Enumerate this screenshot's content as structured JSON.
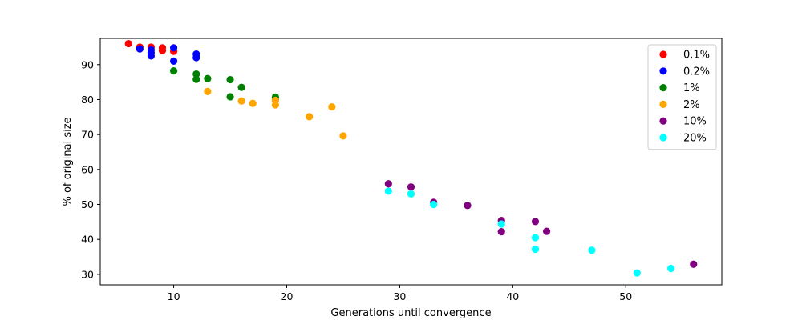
{
  "chart_data": {
    "type": "scatter",
    "title": "",
    "xlabel": "Generations until convergence",
    "ylabel": "% of original size",
    "xlim": [
      3.5,
      58.5
    ],
    "ylim": [
      27.0,
      97.5
    ],
    "xticks": [
      10,
      20,
      30,
      40,
      50
    ],
    "yticks": [
      30,
      40,
      50,
      60,
      70,
      80,
      90
    ],
    "grid": false,
    "legend_position": "top-right",
    "series": [
      {
        "name": "0.1%",
        "color": "#ff0000",
        "points": [
          [
            6,
            96.0
          ],
          [
            7,
            95.0
          ],
          [
            8,
            95.0
          ],
          [
            9,
            94.8
          ],
          [
            9,
            94.0
          ],
          [
            10,
            93.8
          ]
        ]
      },
      {
        "name": "0.2%",
        "color": "#0000ff",
        "points": [
          [
            7,
            94.5
          ],
          [
            8,
            94.2
          ],
          [
            8,
            93.4
          ],
          [
            8,
            92.5
          ],
          [
            10,
            94.8
          ],
          [
            10,
            91.0
          ],
          [
            12,
            93.0
          ],
          [
            12,
            92.0
          ]
        ]
      },
      {
        "name": "1%",
        "color": "#008000",
        "points": [
          [
            10,
            88.2
          ],
          [
            12,
            87.3
          ],
          [
            12,
            85.8
          ],
          [
            13,
            86.0
          ],
          [
            15,
            85.7
          ],
          [
            16,
            83.5
          ],
          [
            15,
            80.8
          ],
          [
            19,
            80.7
          ],
          [
            19,
            80.0
          ]
        ]
      },
      {
        "name": "2%",
        "color": "#ffa500",
        "points": [
          [
            13,
            82.3
          ],
          [
            16,
            79.6
          ],
          [
            17,
            78.9
          ],
          [
            19,
            79.8
          ],
          [
            19,
            78.5
          ],
          [
            24,
            77.9
          ],
          [
            22,
            75.1
          ],
          [
            25,
            69.6
          ]
        ]
      },
      {
        "name": "10%",
        "color": "#800080",
        "points": [
          [
            29,
            55.9
          ],
          [
            31,
            55.0
          ],
          [
            33,
            50.6
          ],
          [
            36,
            49.7
          ],
          [
            39,
            45.4
          ],
          [
            39,
            42.2
          ],
          [
            42,
            45.1
          ],
          [
            43,
            42.3
          ],
          [
            56,
            32.9
          ]
        ]
      },
      {
        "name": "20%",
        "color": "#00ffff",
        "points": [
          [
            29,
            53.8
          ],
          [
            31,
            53.0
          ],
          [
            33,
            50.0
          ],
          [
            39,
            44.4
          ],
          [
            42,
            40.5
          ],
          [
            42,
            37.2
          ],
          [
            47,
            36.9
          ],
          [
            51,
            30.4
          ],
          [
            54,
            31.7
          ]
        ]
      }
    ]
  }
}
